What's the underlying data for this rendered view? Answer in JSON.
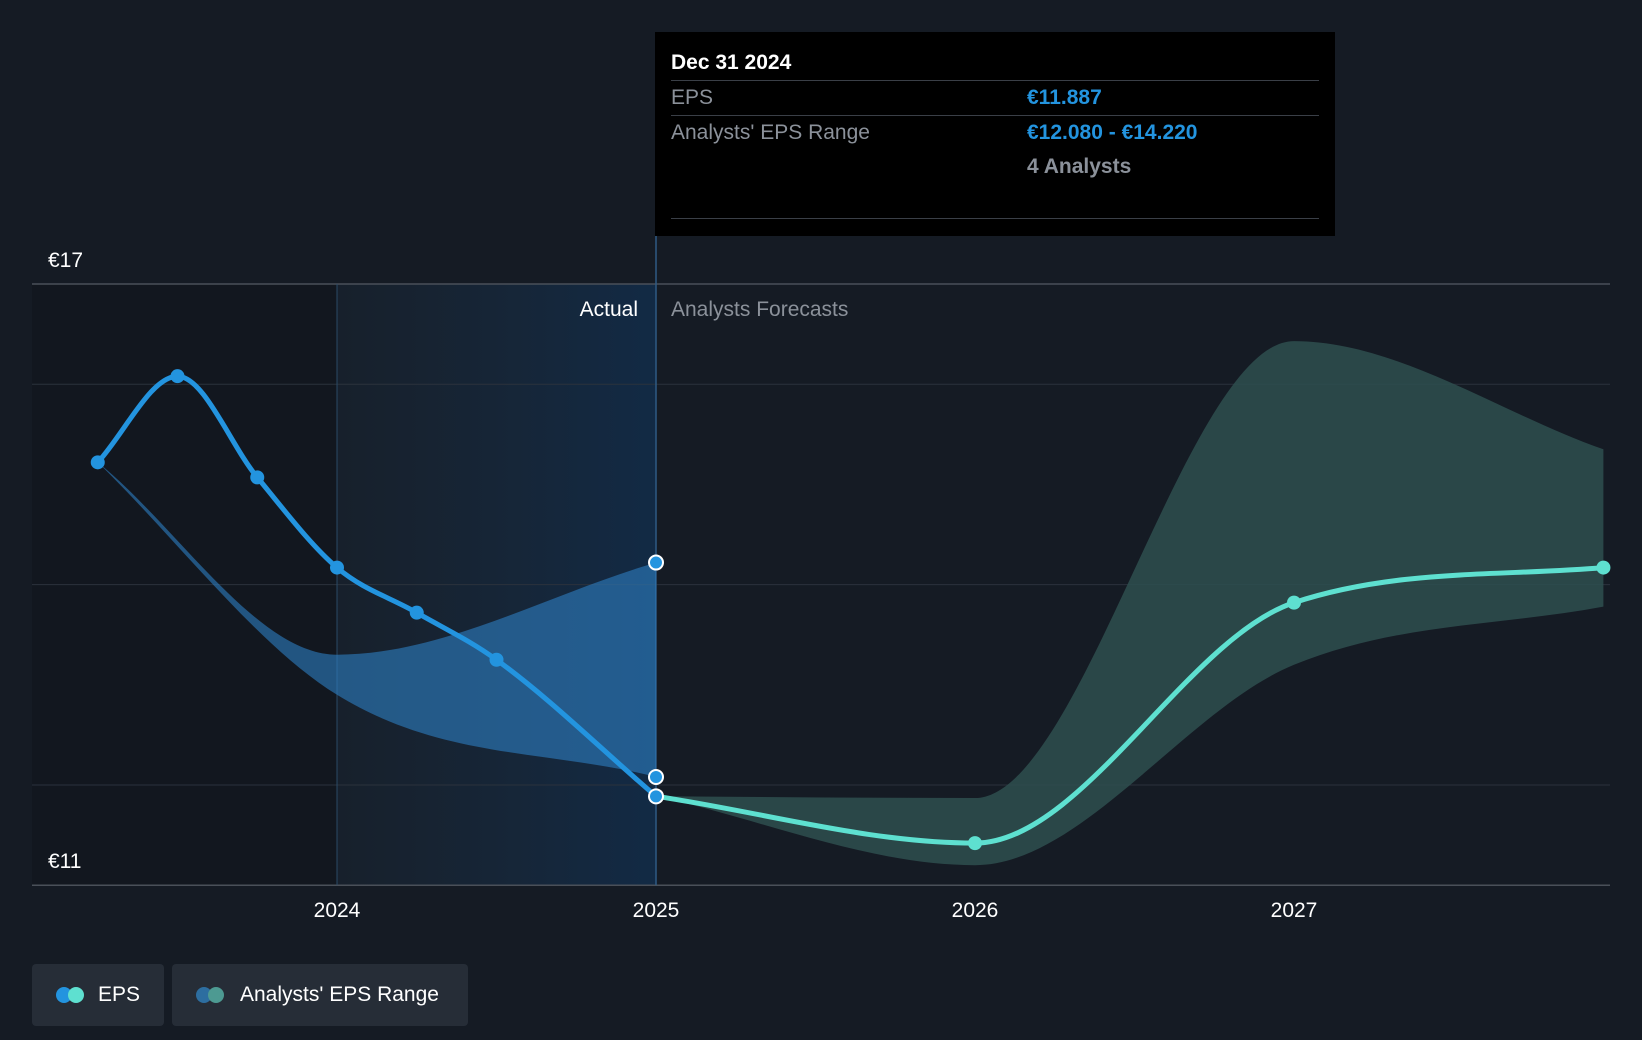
{
  "chart_data": {
    "type": "line",
    "x_axis": {
      "range": [
        2023.2,
        2027.97
      ],
      "ticks": [
        "2024",
        "2025",
        "2026",
        "2027"
      ]
    },
    "y_axis": {
      "range": [
        11,
        17
      ],
      "labels": [
        {
          "value": 17,
          "text": "€17"
        },
        {
          "value": 11,
          "text": "€11"
        }
      ],
      "gridlines": [
        17,
        16,
        14,
        12,
        11
      ]
    },
    "series": [
      {
        "name": "EPS",
        "kind": "actual",
        "color": "#2394df",
        "points": [
          {
            "x": 2023.25,
            "y": 15.22
          },
          {
            "x": 2023.5,
            "y": 16.08
          },
          {
            "x": 2023.75,
            "y": 15.07
          },
          {
            "x": 2024.0,
            "y": 14.17
          },
          {
            "x": 2024.25,
            "y": 13.72
          },
          {
            "x": 2024.5,
            "y": 13.25
          },
          {
            "x": 2025.0,
            "y": 11.887
          }
        ]
      },
      {
        "name": "EPS",
        "kind": "forecast",
        "color": "#5ee0d0",
        "points": [
          {
            "x": 2025.0,
            "y": 11.887
          },
          {
            "x": 2026.0,
            "y": 11.42
          },
          {
            "x": 2027.0,
            "y": 13.82
          },
          {
            "x": 2027.97,
            "y": 14.17
          }
        ]
      }
    ],
    "bands": [
      {
        "name": "Analysts' EPS Range",
        "kind": "actual",
        "color": "#2d7dbf",
        "upper": [
          [
            2023.25,
            15.22
          ],
          [
            2024.0,
            13.3
          ],
          [
            2025.0,
            14.22
          ]
        ],
        "lower": [
          [
            2023.25,
            15.22
          ],
          [
            2024.0,
            12.9
          ],
          [
            2025.0,
            12.08
          ]
        ]
      },
      {
        "name": "Analysts' EPS Range",
        "kind": "forecast",
        "color": "#2e4f4f",
        "upper": [
          [
            2025.0,
            11.887
          ],
          [
            2026.0,
            11.87
          ],
          [
            2027.0,
            16.43
          ],
          [
            2027.97,
            15.35
          ]
        ],
        "lower": [
          [
            2025.0,
            11.887
          ],
          [
            2026.0,
            11.2
          ],
          [
            2027.0,
            13.2
          ],
          [
            2027.97,
            13.78
          ]
        ]
      }
    ],
    "regions": {
      "actual_label": "Actual",
      "forecast_label": "Analysts Forecasts",
      "divider_x": 2025.0,
      "highlight_from": 2024.0
    },
    "range_markers": [
      14.22,
      12.08
    ]
  },
  "tooltip": {
    "date": "Dec 31 2024",
    "rows": [
      {
        "key": "EPS",
        "value": "€11.887"
      },
      {
        "key": "Analysts' EPS Range",
        "value": "€12.080 - €14.220"
      }
    ],
    "analysts": "4 Analysts"
  },
  "legend": [
    {
      "label": "EPS",
      "colors": [
        "#2394df",
        "#5ee0d0"
      ]
    },
    {
      "label": "Analysts' EPS Range",
      "colors": [
        "#2d6ea0",
        "#4d9a92"
      ]
    }
  ]
}
